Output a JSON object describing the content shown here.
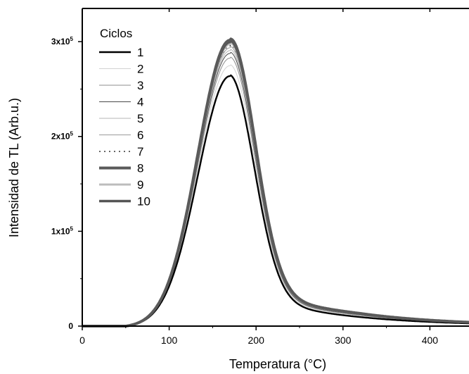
{
  "chart_data": {
    "type": "line",
    "xlabel": "Temperatura (°C)",
    "ylabel": "Intensidad de TL (Arb.u.)",
    "xlim": [
      0,
      445
    ],
    "ylim": [
      0,
      335000
    ],
    "x_ticks": [
      {
        "value": 0,
        "label": "0"
      },
      {
        "value": 100,
        "label": "100"
      },
      {
        "value": 200,
        "label": "200"
      },
      {
        "value": 300,
        "label": "300"
      },
      {
        "value": 400,
        "label": "400"
      }
    ],
    "y_ticks": [
      {
        "value": 0,
        "base": "0",
        "exp": ""
      },
      {
        "value": 100000,
        "base": "1x10",
        "exp": "5"
      },
      {
        "value": 200000,
        "base": "2x10",
        "exp": "5"
      },
      {
        "value": 300000,
        "base": "3x10",
        "exp": "5"
      }
    ],
    "legend": {
      "title": "Ciclos",
      "position": "top-left"
    },
    "grid": false,
    "peak_temperature": 170,
    "series": [
      {
        "name": "1",
        "peak": 265000,
        "color": "#000000",
        "width": 2.4,
        "dash": ""
      },
      {
        "name": "2",
        "peak": 276000,
        "color": "#d2d2d2",
        "width": 1.0,
        "dash": ""
      },
      {
        "name": "3",
        "peak": 284000,
        "color": "#8c8c8c",
        "width": 1.0,
        "dash": ""
      },
      {
        "name": "4",
        "peak": 289000,
        "color": "#4a4a4a",
        "width": 1.0,
        "dash": ""
      },
      {
        "name": "5",
        "peak": 292000,
        "color": "#b4b4b4",
        "width": 1.0,
        "dash": ""
      },
      {
        "name": "6",
        "peak": 295000,
        "color": "#9a9a9a",
        "width": 1.0,
        "dash": ""
      },
      {
        "name": "7",
        "peak": 297000,
        "color": "#333333",
        "width": 1.5,
        "dash": "2,5"
      },
      {
        "name": "8",
        "peak": 303000,
        "color": "#5a5a5a",
        "width": 4.0,
        "dash": ""
      },
      {
        "name": "9",
        "peak": 299000,
        "color": "#bcbcbc",
        "width": 3.0,
        "dash": ""
      },
      {
        "name": "10",
        "peak": 301000,
        "color": "#555555",
        "width": 3.5,
        "dash": ""
      }
    ]
  }
}
